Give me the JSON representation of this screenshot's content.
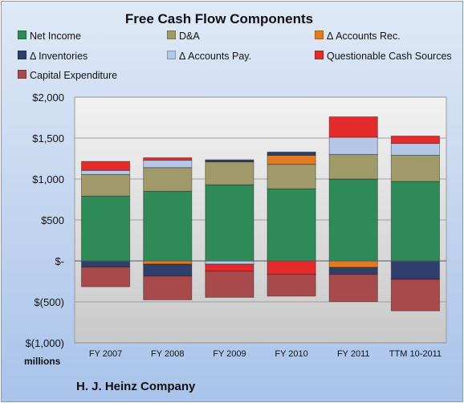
{
  "chart_data": {
    "type": "bar",
    "stacked": true,
    "title": "Free Cash Flow Components",
    "units_label": "millions",
    "footer": "H. J. Heinz Company",
    "categories": [
      "FY 2007",
      "FY 2008",
      "FY 2009",
      "FY 2010",
      "FY 2011",
      "TTM 10-2011"
    ],
    "ylim": [
      -1000,
      2000
    ],
    "yticks": [
      {
        "value": 2000,
        "label": "$2,000"
      },
      {
        "value": 1500,
        "label": "$1,500"
      },
      {
        "value": 1000,
        "label": "$1,000"
      },
      {
        "value": 500,
        "label": "$500"
      },
      {
        "value": 0,
        "label": "$-"
      },
      {
        "value": -500,
        "label": "$(500)"
      },
      {
        "value": -1000,
        "label": "$(1,000)"
      }
    ],
    "grid": true,
    "legend_position": "top",
    "series": [
      {
        "name": "Net Income",
        "color": "#2e8b57",
        "values": [
          790,
          850,
          930,
          880,
          1000,
          970
        ]
      },
      {
        "name": "D&A",
        "color": "#a09a6a",
        "values": [
          265,
          290,
          280,
          300,
          300,
          320
        ]
      },
      {
        "name": "Δ Accounts Rec.",
        "color": "#e07b22",
        "values": [
          0,
          -40,
          0,
          110,
          -80,
          0
        ]
      },
      {
        "name": "Δ Inventories",
        "color": "#2f3f6b",
        "values": [
          -75,
          -145,
          25,
          40,
          -85,
          -225
        ]
      },
      {
        "name": "Δ Accounts Pay.",
        "color": "#b4c7e7",
        "values": [
          50,
          90,
          -40,
          0,
          210,
          145
        ]
      },
      {
        "name": "Questionable Cash Sources",
        "color": "#e32b2b",
        "values": [
          110,
          30,
          -85,
          -165,
          250,
          90
        ]
      },
      {
        "name": "Capital Expenditure",
        "color": "#a84a4c",
        "values": [
          -240,
          -290,
          -320,
          -265,
          -330,
          -385
        ]
      }
    ]
  }
}
